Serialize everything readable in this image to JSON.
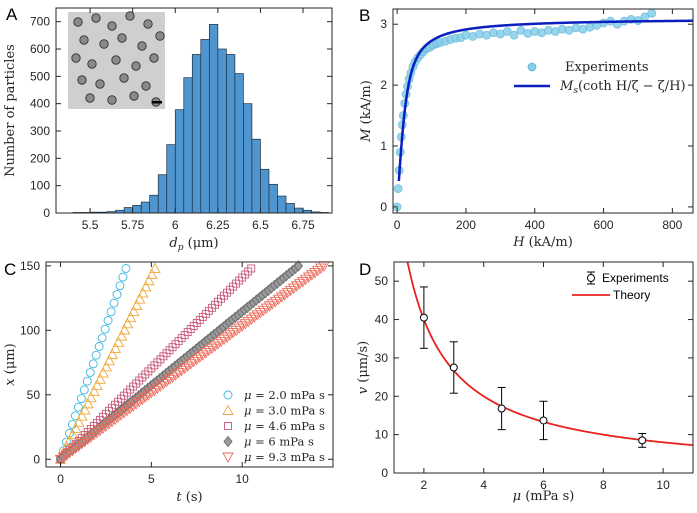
{
  "chart_data": [
    {
      "panel_label": "A",
      "type": "bar",
      "title": "",
      "xlabel_sym": "d",
      "xlabel_sub": "p",
      "xlabel_unit": "(μm)",
      "ylabel": "Number of particles",
      "xlim": [
        5.3,
        6.92
      ],
      "ylim": [
        0,
        750
      ],
      "xticks": [
        5.5,
        5.75,
        6,
        6.25,
        6.5,
        6.75
      ],
      "xtick_labels": [
        "5.5",
        "5.75",
        "6",
        "6.25",
        "6.5",
        "6.75"
      ],
      "yticks": [
        0,
        100,
        200,
        300,
        400,
        500,
        600,
        700
      ],
      "ytick_labels": [
        "0",
        "100",
        "200",
        "300",
        "400",
        "500",
        "600",
        "700"
      ],
      "bin_width": 0.05,
      "bin_starts": [
        5.4,
        5.45,
        5.5,
        5.55,
        5.6,
        5.65,
        5.7,
        5.75,
        5.8,
        5.85,
        5.9,
        5.95,
        6.0,
        6.05,
        6.1,
        6.15,
        6.2,
        6.25,
        6.3,
        6.35,
        6.4,
        6.45,
        6.5,
        6.55,
        6.6,
        6.65,
        6.7,
        6.75,
        6.8,
        6.85
      ],
      "values": [
        2,
        2,
        3,
        3,
        5,
        10,
        20,
        28,
        40,
        65,
        140,
        250,
        378,
        495,
        580,
        635,
        690,
        600,
        580,
        510,
        400,
        270,
        160,
        105,
        62,
        35,
        18,
        10,
        4,
        2
      ],
      "bar_color": "#4f95cf",
      "inset": "micrograph of particles with scale bar"
    },
    {
      "panel_label": "B",
      "type": "scatter",
      "xlabel_sym": "H",
      "xlabel_unit": "(kA/m)",
      "ylabel_sym": "M",
      "ylabel_unit": "(kA/m)",
      "xlim": [
        -12,
        860
      ],
      "ylim": [
        -0.1,
        3.25
      ],
      "xticks": [
        0,
        200,
        400,
        600,
        800
      ],
      "xtick_labels": [
        "0",
        "200",
        "400",
        "600",
        "800"
      ],
      "yticks": [
        0,
        1,
        2,
        3
      ],
      "ytick_labels": [
        "0",
        "1",
        "2",
        "3"
      ],
      "series": [
        {
          "name": "Experiments",
          "kind": "scatter",
          "color": "#87cde8",
          "x": [
            0,
            3,
            6,
            9,
            12,
            15,
            18,
            22,
            26,
            30,
            35,
            40,
            46,
            52,
            60,
            68,
            76,
            85,
            95,
            105,
            115,
            125,
            140,
            155,
            170,
            185,
            200,
            220,
            240,
            260,
            280,
            300,
            320,
            340,
            360,
            380,
            400,
            420,
            440,
            460,
            480,
            500,
            520,
            540,
            560,
            580,
            600,
            620,
            640,
            660,
            680,
            700,
            720,
            740
          ],
          "y": [
            0.0,
            0.3,
            0.6,
            0.9,
            1.15,
            1.35,
            1.5,
            1.7,
            1.85,
            1.98,
            2.1,
            2.2,
            2.3,
            2.38,
            2.45,
            2.5,
            2.55,
            2.6,
            2.62,
            2.66,
            2.68,
            2.7,
            2.72,
            2.75,
            2.77,
            2.78,
            2.82,
            2.8,
            2.84,
            2.82,
            2.86,
            2.84,
            2.88,
            2.82,
            2.9,
            2.85,
            2.88,
            2.86,
            2.9,
            2.88,
            2.92,
            2.9,
            2.94,
            2.92,
            2.95,
            2.98,
            3.02,
            3.05,
            3.0,
            3.05,
            3.08,
            3.06,
            3.12,
            3.18
          ]
        },
        {
          "name": "M_s(coth H/ζ − ζ/H)",
          "kind": "line",
          "color": "#0b1fbf",
          "Ms": 3.1,
          "zeta": 12,
          "x_range": [
            5,
            860
          ]
        }
      ],
      "legend_labels": [
        "Experiments",
        "coth H/ζ − ζ/H)"
      ],
      "legend_ms": "M",
      "legend_ms_sub": "s"
    },
    {
      "panel_label": "C",
      "type": "scatter",
      "xlabel_sym": "t",
      "xlabel_unit": "(s)",
      "ylabel_sym": "x",
      "ylabel_unit": "(μm)",
      "xlim": [
        -0.8,
        15
      ],
      "ylim": [
        -6,
        153
      ],
      "xticks": [
        0,
        5,
        10
      ],
      "xtick_labels": [
        "0",
        "5",
        "10"
      ],
      "yticks": [
        0,
        50,
        100,
        150
      ],
      "ytick_labels": [
        "0",
        "50",
        "100",
        "150"
      ],
      "series": [
        {
          "name": "μ = 2.0 mPa s",
          "mu": "2.0",
          "marker": "circle",
          "color": "#3ab7e0",
          "t_end": 3.6,
          "x_end": 148
        },
        {
          "name": "μ = 3.0 mPa s",
          "mu": "3.0",
          "marker": "triangle-up",
          "color": "#f0a93c",
          "t_end": 5.2,
          "x_end": 148
        },
        {
          "name": "μ = 4.6 mPa s",
          "mu": "4.6",
          "marker": "square",
          "color": "#c95a7a",
          "t_end": 10.5,
          "x_end": 148
        },
        {
          "name": "μ = 6 mPa s",
          "mu": "6",
          "marker": "diamond",
          "color": "#6e6e6e",
          "t_end": 13.1,
          "x_end": 150
        },
        {
          "name": "μ = 9.3 mPa s",
          "mu": "9.3",
          "marker": "triangle-down",
          "color": "#ee6a5a",
          "t_end": 14.5,
          "x_end": 150
        }
      ],
      "legend_units": "mPa s"
    },
    {
      "panel_label": "D",
      "type": "scatter",
      "xlabel_sym": "μ",
      "xlabel_unit": "(mPa s)",
      "ylabel_sym": "v",
      "ylabel_unit": "(μm/s)",
      "xlim": [
        1,
        11
      ],
      "ylim": [
        0,
        55
      ],
      "xticks": [
        2,
        4,
        6,
        8,
        10
      ],
      "xtick_labels": [
        "2",
        "4",
        "6",
        "8",
        "10"
      ],
      "yticks": [
        0,
        10,
        20,
        30,
        40,
        50
      ],
      "ytick_labels": [
        "0",
        "10",
        "20",
        "30",
        "40",
        "50"
      ],
      "series": [
        {
          "name": "Experiments",
          "kind": "errorbar",
          "color": "#000000",
          "x": [
            2.0,
            3.0,
            4.6,
            6.0,
            9.3
          ],
          "y": [
            40.5,
            27.5,
            16.8,
            13.7,
            8.5
          ],
          "err": [
            8.0,
            6.7,
            5.5,
            5.0,
            1.8
          ]
        },
        {
          "name": "Theory",
          "kind": "line",
          "color": "#e8231f",
          "k": 80,
          "x_range": [
            1.45,
            11
          ]
        }
      ]
    }
  ]
}
